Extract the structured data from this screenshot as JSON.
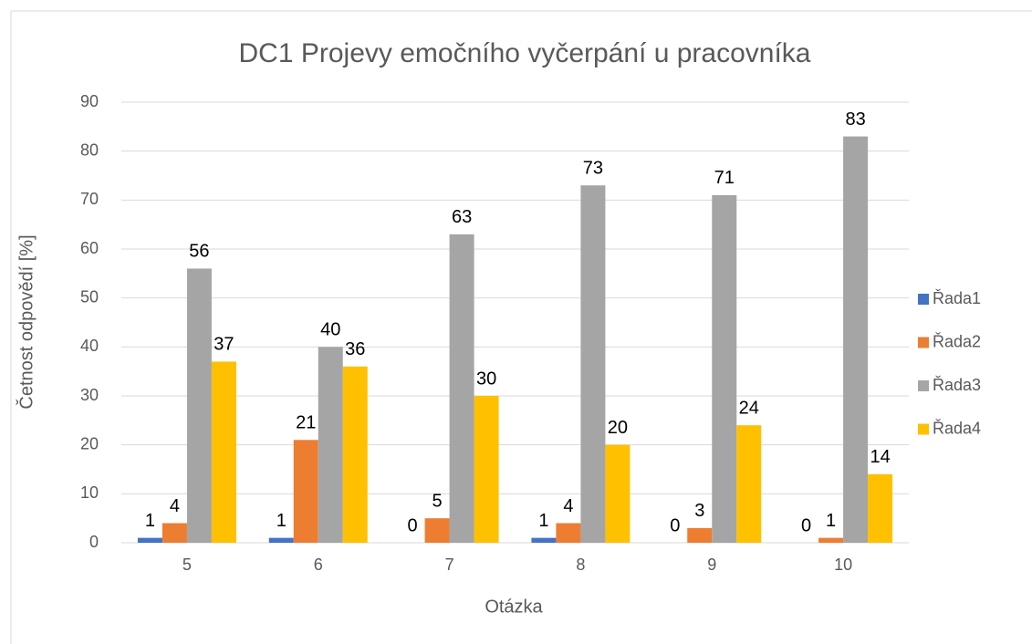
{
  "chart_data": {
    "type": "bar",
    "title": "DC1  Projevy emočního vyčerpání u pracovníka",
    "x_label": "Otázka",
    "y_label": "Četnost odpovědí [%]",
    "categories": [
      "5",
      "6",
      "7",
      "8",
      "9",
      "10"
    ],
    "series": [
      {
        "name": "Řada1",
        "color": "#4472c4",
        "values": [
          1,
          1,
          0,
          1,
          0,
          0
        ]
      },
      {
        "name": "Řada2",
        "color": "#ed7d31",
        "values": [
          4,
          21,
          5,
          4,
          3,
          1
        ]
      },
      {
        "name": "Řada3",
        "color": "#a5a5a5",
        "values": [
          56,
          40,
          63,
          73,
          71,
          83
        ]
      },
      {
        "name": "Řada4",
        "color": "#ffc000",
        "values": [
          37,
          36,
          30,
          20,
          24,
          14
        ]
      }
    ],
    "ylim": [
      0,
      90
    ],
    "yticks": [
      0,
      10,
      20,
      30,
      40,
      50,
      60,
      70,
      80,
      90
    ],
    "grid": true,
    "legend": "right"
  }
}
